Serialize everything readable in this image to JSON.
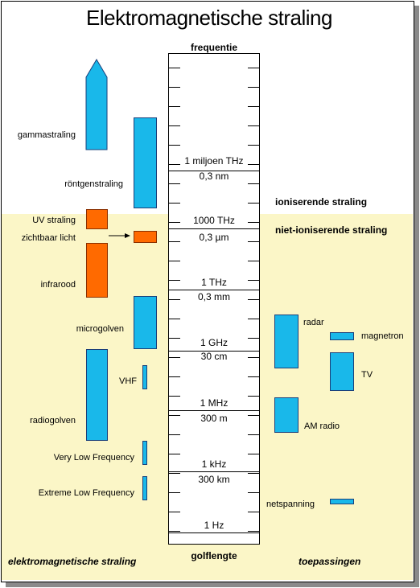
{
  "title": "Elektromagnetische straling",
  "scale": {
    "top_label": "frequentie",
    "bottom_label": "golflengte",
    "marks": [
      {
        "freq": "1 miljoen THz",
        "wave": "0,3 nm"
      },
      {
        "freq": "1000 THz",
        "wave": "0,3 µm"
      },
      {
        "freq": "1 THz",
        "wave": "0,3 mm"
      },
      {
        "freq": "1 GHz",
        "wave": "30 cm"
      },
      {
        "freq": "1 MHz",
        "wave": "300 m"
      },
      {
        "freq": "1 kHz",
        "wave": "300 km"
      },
      {
        "freq": "1 Hz",
        "wave": ""
      }
    ]
  },
  "radiation": {
    "gamma": "gammastraling",
    "xray": "röntgenstraling",
    "uv": "UV straling",
    "visible": "zichtbaar licht",
    "infrared": "infrarood",
    "microwave": "microgolven",
    "vhf": "VHF",
    "radio": "radiogolven",
    "vlf": "Very Low Frequency",
    "elf": "Extreme Low Frequency"
  },
  "zones": {
    "ionizing": "ioniserende straling",
    "non_ionizing": "niet-ioniserende straling"
  },
  "applications": {
    "radar": "radar",
    "magnetron": "magnetron",
    "tv": "TV",
    "am": "AM radio",
    "mains": "netspanning"
  },
  "footer": {
    "left": "elektromagnetische straling",
    "right": "toepassingen"
  },
  "colors": {
    "ionizing_band": "#19b8ea",
    "optical_band": "#ff6a00",
    "non_ionizing_background": "#fbf6c7"
  }
}
